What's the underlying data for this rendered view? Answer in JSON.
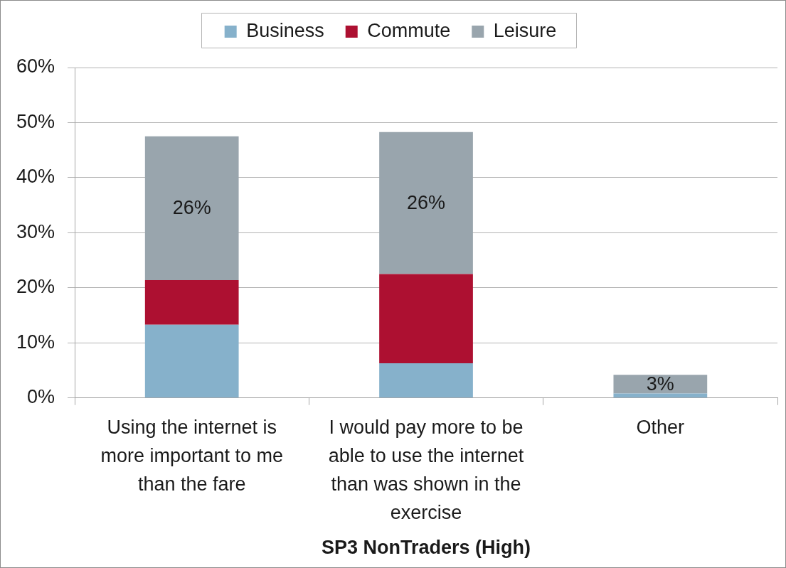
{
  "chart_data": {
    "type": "bar",
    "stacked": true,
    "xlabel": "SP3 NonTraders (High)",
    "categories": [
      "Using the internet is more important to me than the fare",
      "I would pay more to be able to use the internet than was shown in the exercise",
      "Other"
    ],
    "series": [
      {
        "name": "Business",
        "color": "#86b1cb",
        "values": [
          13.3,
          6.3,
          0.8
        ]
      },
      {
        "name": "Commute",
        "color": "#ad1031",
        "values": [
          8.1,
          16.2,
          0
        ]
      },
      {
        "name": "Leisure",
        "color": "#99a5ad",
        "values": [
          26.1,
          25.8,
          3.4
        ],
        "value_labels": [
          "26%",
          "26%",
          "3%"
        ]
      }
    ],
    "ylim": [
      0,
      60
    ],
    "yticks": [
      {
        "value": 0,
        "label": "0%"
      },
      {
        "value": 10,
        "label": "10%"
      },
      {
        "value": 20,
        "label": "20%"
      },
      {
        "value": 30,
        "label": "30%"
      },
      {
        "value": 40,
        "label": "40%"
      },
      {
        "value": 50,
        "label": "50%"
      },
      {
        "value": 60,
        "label": "60%"
      }
    ],
    "grid": "y",
    "legend": "top"
  }
}
